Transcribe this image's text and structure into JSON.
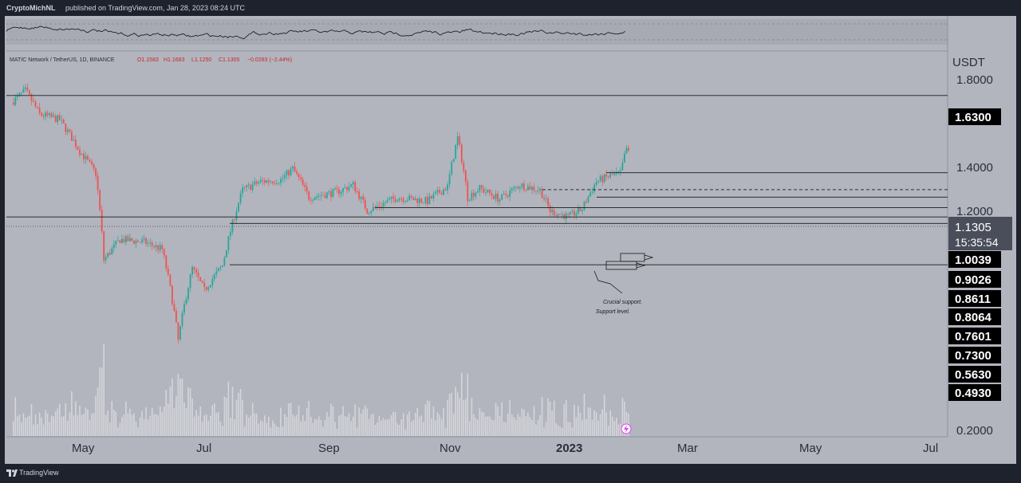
{
  "header": {
    "author": "CryptoMichNL",
    "published": "published on TradingView.com, Jan 28, 2023 08:24 UTC"
  },
  "footer": {
    "brand": "TradingView"
  },
  "colors": {
    "panel_bg": "#b2b5be",
    "dark_bg": "#1e222d",
    "up": "#26a69a",
    "down": "#ef5350",
    "label_bg": "#000000",
    "label_text": "#ffffff",
    "price_label_bg": "#4a4e5a"
  },
  "chart_data": {
    "type": "candlestick",
    "symbol_line": "MATIC Network / TetherUS, 1D, BINANCE",
    "ohlc": {
      "open": "O1.1583",
      "high": "H1.1683",
      "low": "L1.1250",
      "close": "C1.1305",
      "change": "−0.0283 (−2.44%)"
    },
    "currency": "USDT",
    "y_ticks": [
      "1.8000",
      "1.4000",
      "1.2000",
      "0.2000"
    ],
    "x_ticks": [
      "May",
      "Jul",
      "Sep",
      "Nov",
      "2023",
      "Mar",
      "May",
      "Jul"
    ],
    "last_price": "1.1305",
    "countdown": "15:35:54",
    "levels": [
      "1.6300",
      "1.0039",
      "0.9026",
      "0.8611",
      "0.8064",
      "0.7601",
      "0.7300",
      "0.5630",
      "0.4930"
    ],
    "annotations": [
      "Crucial support.",
      "Support level."
    ],
    "price_anchors": [
      {
        "date": "2022-03-27",
        "price": 1.56
      },
      {
        "date": "2022-04-03",
        "price": 1.68
      },
      {
        "date": "2022-04-10",
        "price": 1.45
      },
      {
        "date": "2022-04-20",
        "price": 1.4
      },
      {
        "date": "2022-04-30",
        "price": 1.15
      },
      {
        "date": "2022-05-08",
        "price": 1.0
      },
      {
        "date": "2022-05-12",
        "price": 0.58
      },
      {
        "date": "2022-05-20",
        "price": 0.66
      },
      {
        "date": "2022-06-01",
        "price": 0.65
      },
      {
        "date": "2022-06-10",
        "price": 0.62
      },
      {
        "date": "2022-06-18",
        "price": 0.35
      },
      {
        "date": "2022-06-25",
        "price": 0.55
      },
      {
        "date": "2022-07-01",
        "price": 0.48
      },
      {
        "date": "2022-07-10",
        "price": 0.56
      },
      {
        "date": "2022-07-20",
        "price": 0.9
      },
      {
        "date": "2022-07-29",
        "price": 0.95
      },
      {
        "date": "2022-08-08",
        "price": 0.96
      },
      {
        "date": "2022-08-14",
        "price": 1.03
      },
      {
        "date": "2022-08-22",
        "price": 0.86
      },
      {
        "date": "2022-09-05",
        "price": 0.89
      },
      {
        "date": "2022-09-13",
        "price": 0.93
      },
      {
        "date": "2022-09-20",
        "price": 0.79
      },
      {
        "date": "2022-10-05",
        "price": 0.86
      },
      {
        "date": "2022-10-20",
        "price": 0.84
      },
      {
        "date": "2022-10-30",
        "price": 0.92
      },
      {
        "date": "2022-11-04",
        "price": 1.25
      },
      {
        "date": "2022-11-09",
        "price": 0.86
      },
      {
        "date": "2022-11-15",
        "price": 0.91
      },
      {
        "date": "2022-11-25",
        "price": 0.85
      },
      {
        "date": "2022-12-05",
        "price": 0.93
      },
      {
        "date": "2022-12-15",
        "price": 0.9
      },
      {
        "date": "2022-12-20",
        "price": 0.79
      },
      {
        "date": "2022-12-29",
        "price": 0.76
      },
      {
        "date": "2023-01-05",
        "price": 0.8
      },
      {
        "date": "2023-01-12",
        "price": 0.95
      },
      {
        "date": "2023-01-18",
        "price": 0.98
      },
      {
        "date": "2023-01-24",
        "price": 1.0
      },
      {
        "date": "2023-01-27",
        "price": 1.17
      },
      {
        "date": "2023-01-28",
        "price": 1.1305
      }
    ]
  }
}
